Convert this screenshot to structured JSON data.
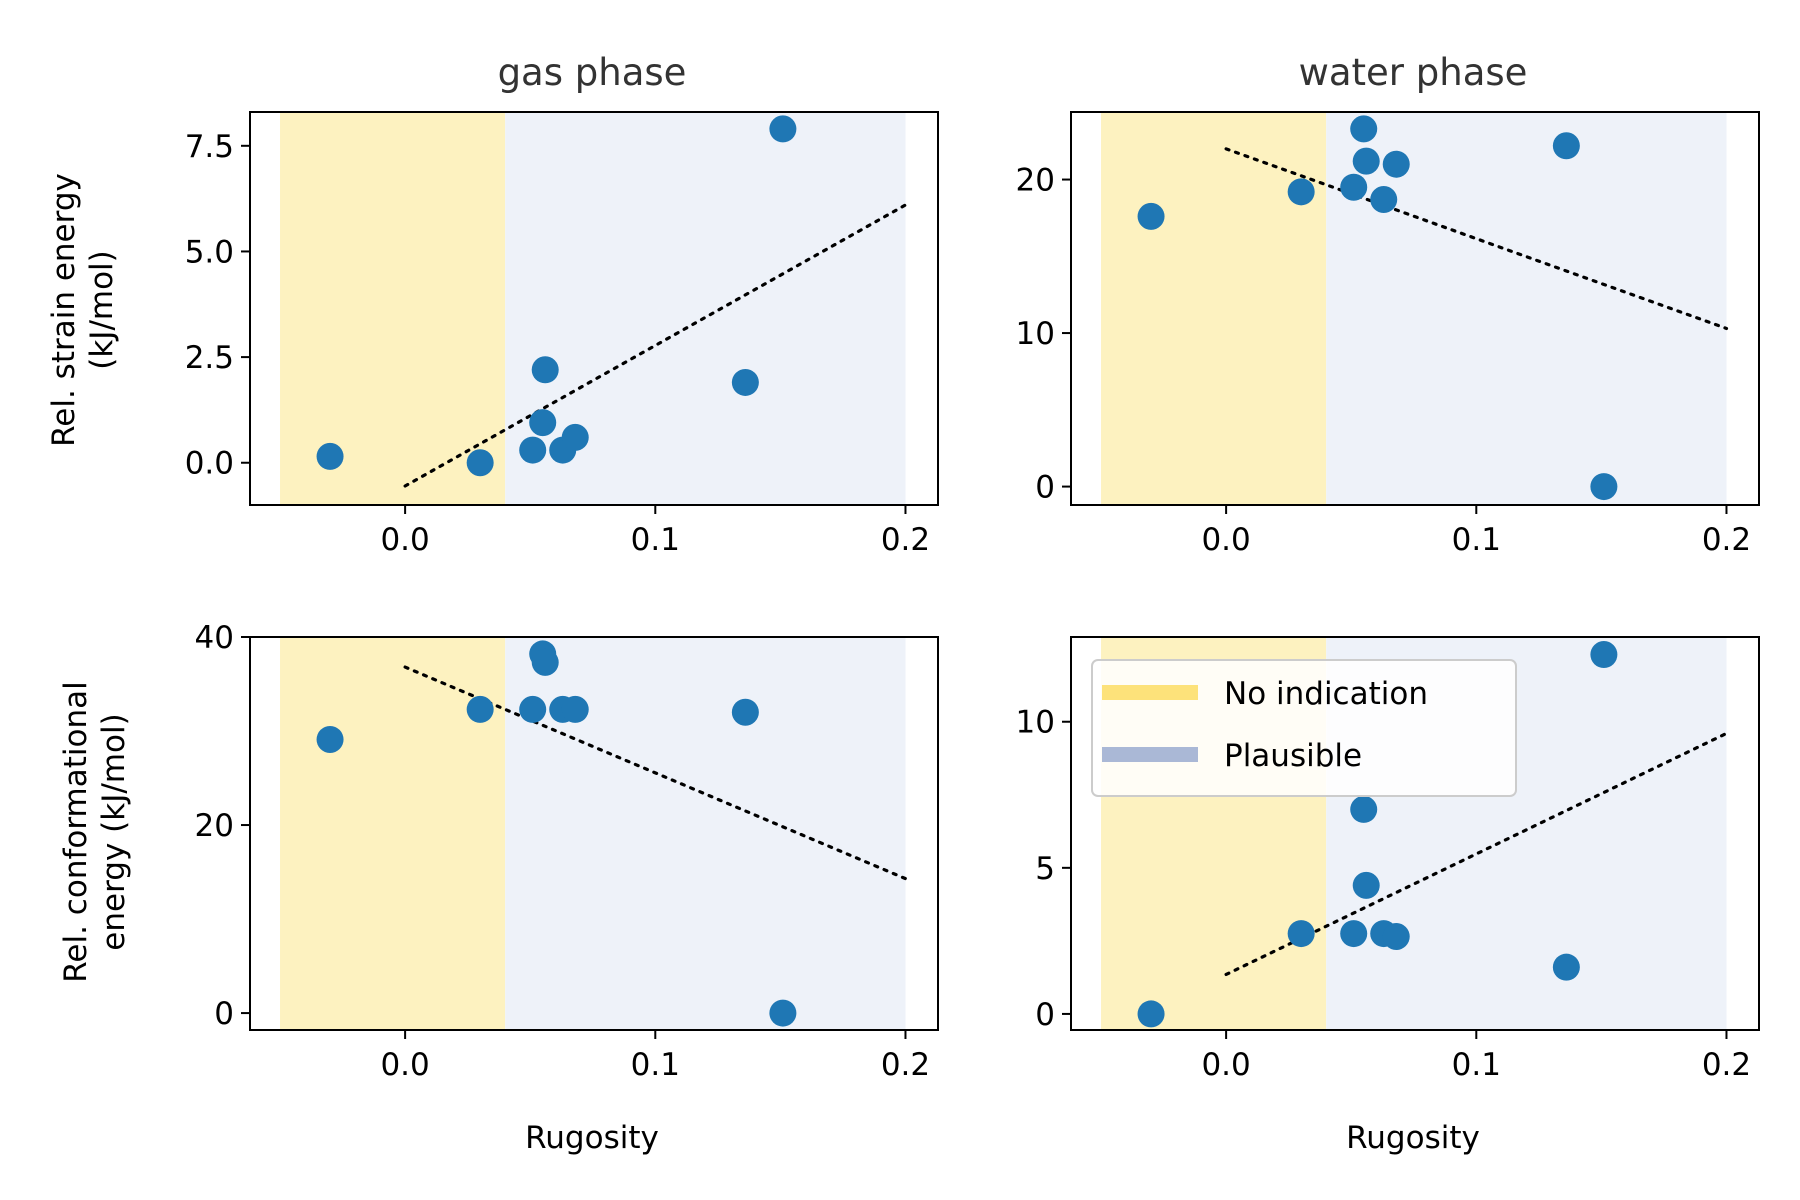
{
  "figure": {
    "col_titles": [
      "gas phase",
      "water phase"
    ],
    "row_ylabels": [
      [
        "Rel. strain energy",
        "(kJ/mol)"
      ],
      [
        "Rel. conformational",
        "energy (kJ/mol)"
      ]
    ],
    "xlabel": "Rugosity"
  },
  "legend": {
    "placement": "upper-left of bottom-right panel",
    "items": [
      {
        "label": "No indication",
        "color": "#fde27a"
      },
      {
        "label": "Plausible",
        "color": "#aab8d6"
      }
    ]
  },
  "colors": {
    "points": "#1f77b4",
    "no_indication_band": "#fdf2c0",
    "plausible_band": "#eef2f9",
    "trend": "#000000"
  },
  "chart_data": [
    {
      "type": "scatter",
      "title": "gas phase",
      "xlabel": "",
      "ylabel": "Rel. strain energy (kJ/mol)",
      "xlim": [
        -0.062,
        0.213
      ],
      "ylim": [
        -1.0,
        8.3
      ],
      "xticks": [
        0.0,
        0.1,
        0.2
      ],
      "xtick_labels": [
        "0.0",
        "0.1",
        "0.2"
      ],
      "yticks": [
        0.0,
        2.5,
        5.0,
        7.5
      ],
      "ytick_labels": [
        "0.0",
        "2.5",
        "5.0",
        "7.5"
      ],
      "bands": [
        {
          "label": "No indication",
          "x": [
            -0.05,
            0.04
          ]
        },
        {
          "label": "Plausible",
          "x": [
            0.04,
            0.2
          ]
        }
      ],
      "points": [
        {
          "x": -0.03,
          "y": 0.15
        },
        {
          "x": 0.03,
          "y": 0.0
        },
        {
          "x": 0.051,
          "y": 0.3
        },
        {
          "x": 0.055,
          "y": 0.95
        },
        {
          "x": 0.056,
          "y": 2.2
        },
        {
          "x": 0.063,
          "y": 0.3
        },
        {
          "x": 0.068,
          "y": 0.6
        },
        {
          "x": 0.136,
          "y": 1.9
        },
        {
          "x": 0.151,
          "y": 7.9
        }
      ],
      "trendline": {
        "x": [
          0.0,
          0.2
        ],
        "y": [
          -0.55,
          6.1
        ]
      }
    },
    {
      "type": "scatter",
      "title": "water phase",
      "xlabel": "",
      "ylabel": "",
      "xlim": [
        -0.062,
        0.213
      ],
      "ylim": [
        -1.2,
        24.4
      ],
      "xticks": [
        0.0,
        0.1,
        0.2
      ],
      "xtick_labels": [
        "0.0",
        "0.1",
        "0.2"
      ],
      "yticks": [
        0,
        10,
        20
      ],
      "ytick_labels": [
        "0",
        "10",
        "20"
      ],
      "bands": [
        {
          "label": "No indication",
          "x": [
            -0.05,
            0.04
          ]
        },
        {
          "label": "Plausible",
          "x": [
            0.04,
            0.2
          ]
        }
      ],
      "points": [
        {
          "x": -0.03,
          "y": 17.6
        },
        {
          "x": 0.03,
          "y": 19.2
        },
        {
          "x": 0.051,
          "y": 19.5
        },
        {
          "x": 0.055,
          "y": 23.3
        },
        {
          "x": 0.056,
          "y": 21.2
        },
        {
          "x": 0.063,
          "y": 18.7
        },
        {
          "x": 0.068,
          "y": 21.0
        },
        {
          "x": 0.136,
          "y": 22.2
        },
        {
          "x": 0.151,
          "y": 0.0
        }
      ],
      "trendline": {
        "x": [
          0.0,
          0.2
        ],
        "y": [
          22.0,
          10.3
        ]
      }
    },
    {
      "type": "scatter",
      "title": "",
      "xlabel": "Rugosity",
      "ylabel": "Rel. conformational energy (kJ/mol)",
      "xlim": [
        -0.062,
        0.213
      ],
      "ylim": [
        -1.8,
        40.0
      ],
      "xticks": [
        0.0,
        0.1,
        0.2
      ],
      "xtick_labels": [
        "0.0",
        "0.1",
        "0.2"
      ],
      "yticks": [
        0,
        20,
        40
      ],
      "ytick_labels": [
        "0",
        "20",
        "40"
      ],
      "bands": [
        {
          "label": "No indication",
          "x": [
            -0.05,
            0.04
          ]
        },
        {
          "label": "Plausible",
          "x": [
            0.04,
            0.2
          ]
        }
      ],
      "points": [
        {
          "x": -0.03,
          "y": 29.1
        },
        {
          "x": 0.03,
          "y": 32.3
        },
        {
          "x": 0.051,
          "y": 32.3
        },
        {
          "x": 0.055,
          "y": 38.2
        },
        {
          "x": 0.056,
          "y": 37.3
        },
        {
          "x": 0.063,
          "y": 32.3
        },
        {
          "x": 0.068,
          "y": 32.3
        },
        {
          "x": 0.136,
          "y": 32.0
        },
        {
          "x": 0.151,
          "y": 0.0
        }
      ],
      "trendline": {
        "x": [
          0.0,
          0.2
        ],
        "y": [
          36.8,
          14.3
        ]
      }
    },
    {
      "type": "scatter",
      "title": "",
      "xlabel": "Rugosity",
      "ylabel": "",
      "xlim": [
        -0.062,
        0.213
      ],
      "ylim": [
        -0.55,
        12.9
      ],
      "xticks": [
        0.0,
        0.1,
        0.2
      ],
      "xtick_labels": [
        "0.0",
        "0.1",
        "0.2"
      ],
      "yticks": [
        0,
        5,
        10
      ],
      "ytick_labels": [
        "0",
        "5",
        "10"
      ],
      "bands": [
        {
          "label": "No indication",
          "x": [
            -0.05,
            0.04
          ]
        },
        {
          "label": "Plausible",
          "x": [
            0.04,
            0.2
          ]
        }
      ],
      "points": [
        {
          "x": -0.03,
          "y": 0.0
        },
        {
          "x": 0.03,
          "y": 2.75
        },
        {
          "x": 0.051,
          "y": 2.75
        },
        {
          "x": 0.055,
          "y": 7.0
        },
        {
          "x": 0.056,
          "y": 4.4
        },
        {
          "x": 0.063,
          "y": 2.75
        },
        {
          "x": 0.068,
          "y": 2.65
        },
        {
          "x": 0.136,
          "y": 1.6
        },
        {
          "x": 0.151,
          "y": 12.3
        }
      ],
      "trendline": {
        "x": [
          0.0,
          0.2
        ],
        "y": [
          1.35,
          9.6
        ]
      }
    }
  ]
}
